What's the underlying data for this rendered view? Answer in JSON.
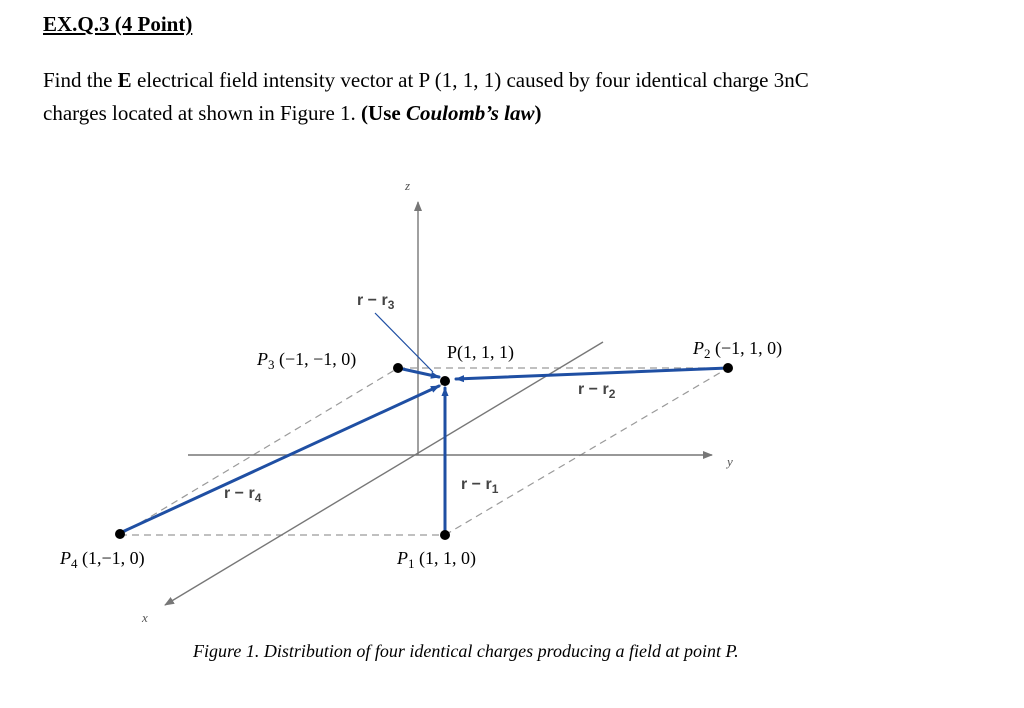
{
  "heading": "EX.Q.3 (4 Point)",
  "problem": {
    "line1_a": "Find the ",
    "line1_bold": "E",
    "line1_b": " electrical field intensity vector at P (1, 1, 1) caused by four identical charge 3nC",
    "line2_a": "charges located at shown in Figure 1.  ",
    "line2_bold1": "(Use ",
    "line2_bolditalic": "Coulomb’s law",
    "line2_bold2": ")"
  },
  "figure": {
    "axes": {
      "x": "x",
      "y": "y",
      "z": "z"
    },
    "points": {
      "P": {
        "label": "P(1, 1, 1)",
        "sub": ""
      },
      "P1": {
        "label_base": "P",
        "sub": "1",
        "label_rest": " (1, 1, 0)"
      },
      "P2": {
        "label_base": "P",
        "sub": "2",
        "label_rest": " (−1, 1, 0)"
      },
      "P3": {
        "label_base": "P",
        "sub": "3",
        "label_rest": " (−1, −1, 0)"
      },
      "P4": {
        "label_base": "P",
        "sub": "4",
        "label_rest": " (1,−1, 0)"
      }
    },
    "vectors": {
      "v1": {
        "base": "r − r",
        "sub": "1"
      },
      "v2": {
        "base": "r − r",
        "sub": "2"
      },
      "v3": {
        "base": "r − r",
        "sub": "3"
      },
      "v4": {
        "base": "r − r",
        "sub": "4"
      }
    },
    "colors": {
      "vector": "#1f4fa3",
      "guide": "#9a9a9a",
      "axis": "#777777"
    },
    "caption": "Figure 1.  Distribution of four identical charges producing a field at point P."
  }
}
